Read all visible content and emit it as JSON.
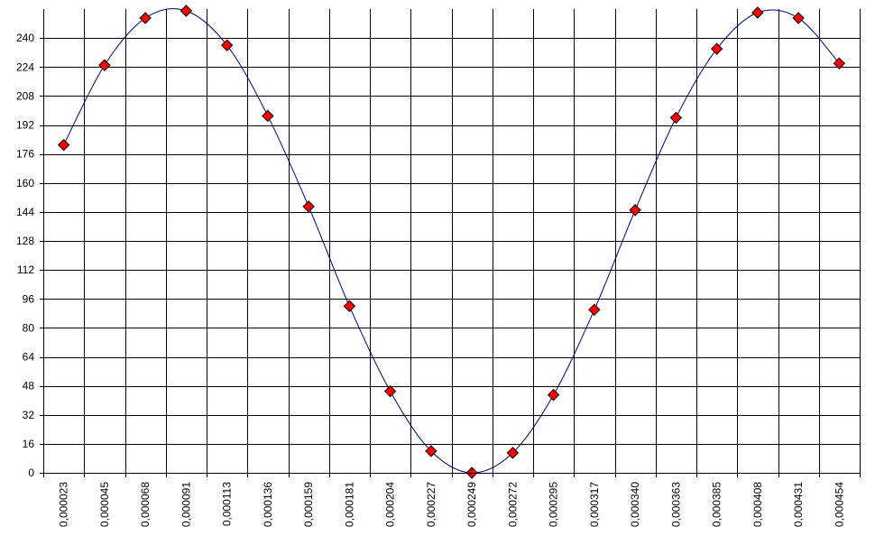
{
  "chart_data": {
    "type": "scatter",
    "title": "",
    "xlabel": "",
    "ylabel": "",
    "ylim": [
      0,
      256
    ],
    "y_ticks": [
      "0",
      "16",
      "32",
      "48",
      "64",
      "80",
      "96",
      "112",
      "128",
      "144",
      "160",
      "176",
      "192",
      "208",
      "224",
      "240"
    ],
    "categories": [
      "0,000023",
      "0,000045",
      "0,000068",
      "0,000091",
      "0,000113",
      "0,000136",
      "0,000159",
      "0,000181",
      "0,000204",
      "0,000227",
      "0,000249",
      "0,000272",
      "0,000295",
      "0,000317",
      "0,000340",
      "0,000363",
      "0,000385",
      "0,000408",
      "0,000431",
      "0,000454"
    ],
    "series": [
      {
        "values": [
          181,
          225,
          251,
          255,
          236,
          197,
          147,
          92,
          45,
          12,
          0,
          11,
          43,
          90,
          145,
          196,
          234,
          254,
          251,
          226
        ],
        "marker": "diamond",
        "marker_color": "#ff0000",
        "line": "smoothed",
        "line_color": "#000080"
      }
    ],
    "grid": true,
    "legend": "none"
  }
}
